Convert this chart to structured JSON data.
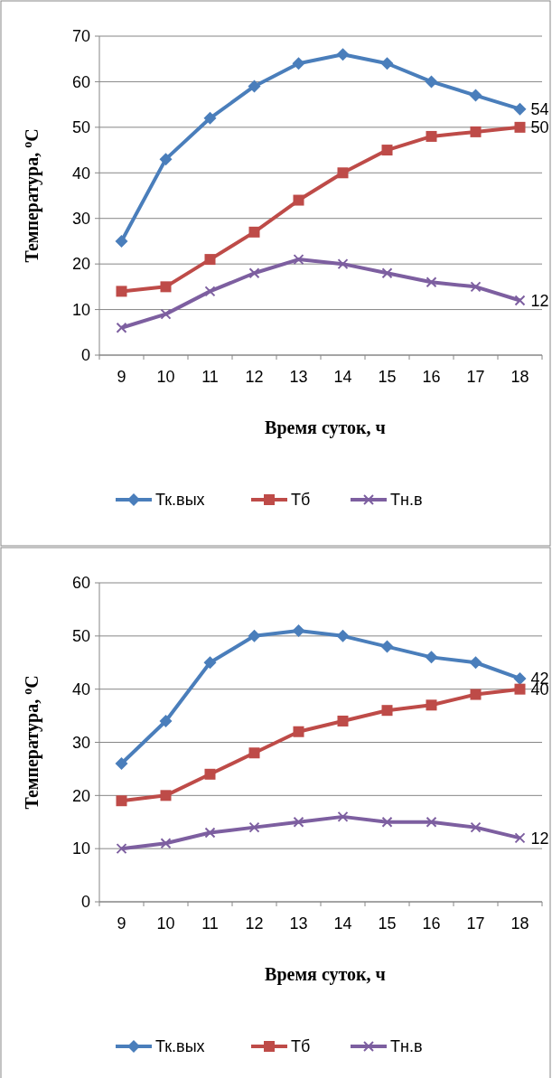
{
  "chart_data": [
    {
      "type": "line",
      "xlabel": "Время суток, ч",
      "ylabel": "Температура, $^{о}$С",
      "categories": [
        "9",
        "10",
        "11",
        "12",
        "13",
        "14",
        "15",
        "16",
        "17",
        "18"
      ],
      "ylim": [
        0,
        70
      ],
      "yticks": [
        0,
        10,
        20,
        30,
        40,
        50,
        60,
        70
      ],
      "grid": "y",
      "legend": "bottom",
      "series": [
        {
          "name": "Тк.вых",
          "color": "#4a7ebb",
          "marker": "diamond",
          "values": [
            25,
            43,
            52,
            59,
            64,
            66,
            64,
            60,
            57,
            54
          ],
          "value_labels": [
            null,
            null,
            null,
            null,
            null,
            null,
            null,
            null,
            null,
            "54"
          ]
        },
        {
          "name": "Тб",
          "color": "#be4b48",
          "marker": "square",
          "values": [
            14,
            15,
            21,
            27,
            34,
            40,
            45,
            48,
            49,
            50
          ],
          "value_labels": [
            null,
            null,
            null,
            null,
            null,
            null,
            null,
            null,
            null,
            "50"
          ]
        },
        {
          "name": "Тн.в",
          "color": "#7d5fa0",
          "marker": "cross",
          "values": [
            6,
            9,
            14,
            18,
            21,
            20,
            18,
            16,
            15,
            12
          ],
          "value_labels": [
            null,
            null,
            null,
            null,
            null,
            null,
            null,
            null,
            null,
            "12"
          ]
        }
      ]
    },
    {
      "type": "line",
      "xlabel": "Время суток, ч",
      "ylabel": "Температура, $^{о}$С",
      "categories": [
        "9",
        "10",
        "11",
        "12",
        "13",
        "14",
        "15",
        "16",
        "17",
        "18"
      ],
      "ylim": [
        0,
        60
      ],
      "yticks": [
        0,
        10,
        20,
        30,
        40,
        50,
        60
      ],
      "grid": "y",
      "legend": "bottom",
      "series": [
        {
          "name": "Тк.вых",
          "color": "#4a7ebb",
          "marker": "diamond",
          "values": [
            26,
            34,
            45,
            50,
            51,
            50,
            48,
            46,
            45,
            42
          ],
          "value_labels": [
            null,
            null,
            null,
            null,
            null,
            null,
            null,
            null,
            null,
            "42"
          ]
        },
        {
          "name": "Тб",
          "color": "#be4b48",
          "marker": "square",
          "values": [
            19,
            20,
            24,
            28,
            32,
            34,
            36,
            37,
            39,
            40
          ],
          "value_labels": [
            null,
            null,
            null,
            null,
            null,
            null,
            null,
            null,
            null,
            "40"
          ]
        },
        {
          "name": "Тн.в",
          "color": "#7d5fa0",
          "marker": "cross",
          "values": [
            10,
            11,
            13,
            14,
            15,
            16,
            15,
            15,
            14,
            12
          ],
          "value_labels": [
            null,
            null,
            null,
            null,
            null,
            null,
            null,
            null,
            null,
            "12"
          ]
        }
      ]
    }
  ]
}
